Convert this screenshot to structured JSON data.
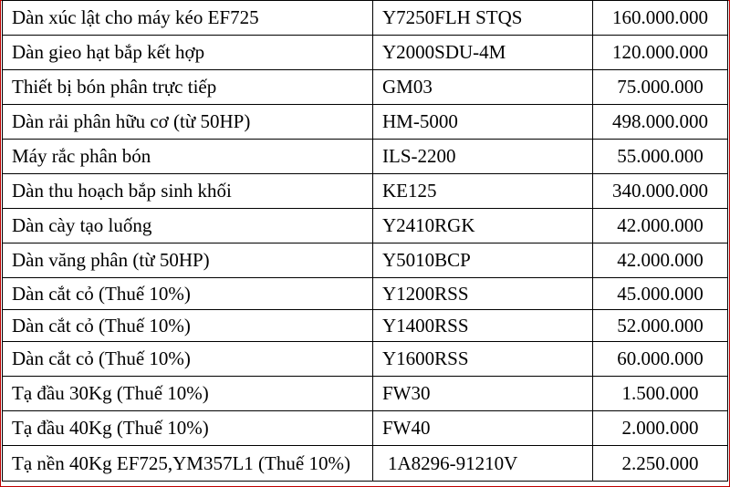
{
  "price_table": {
    "rows": [
      {
        "name": "Dàn xúc lật cho máy kéo EF725",
        "code": "Y7250FLH STQS",
        "price": "160.000.000"
      },
      {
        "name": "Dàn gieo hạt bắp kết hợp",
        "code": "Y2000SDU-4M",
        "price": "120.000.000"
      },
      {
        "name": "Thiết bị bón phân trực tiếp",
        "code": "GM03",
        "price": "75.000.000"
      },
      {
        "name": "Dàn rải phân hữu cơ (từ 50HP)",
        "code": "HM-5000",
        "price": "498.000.000"
      },
      {
        "name": "Máy rắc phân bón",
        "code": "ILS-2200",
        "price": "55.000.000"
      },
      {
        "name": "Dàn thu hoạch bắp sinh khối",
        "code": "KE125",
        "price": "340.000.000"
      },
      {
        "name": "Dàn cày tạo luống",
        "code": "Y2410RGK",
        "price": "42.000.000"
      },
      {
        "name": "Dàn văng phân (từ 50HP)",
        "code": "Y5010BCP",
        "price": "42.000.000"
      },
      {
        "name": "Dàn cắt cỏ (Thuế 10%)",
        "code": "Y1200RSS",
        "price": "45.000.000"
      },
      {
        "name": "Dàn cắt cỏ (Thuế 10%)",
        "code": "Y1400RSS",
        "price": "52.000.000"
      },
      {
        "name": "Dàn cắt cỏ (Thuế 10%)",
        "code": "Y1600RSS",
        "price": "60.000.000"
      },
      {
        "name": "Tạ đầu 30Kg (Thuế 10%)",
        "code": "FW30",
        "price": "1.500.000"
      },
      {
        "name": "Tạ đầu 40Kg (Thuế 10%)",
        "code": "FW40",
        "price": "2.000.000"
      },
      {
        "name": "Tạ nền 40Kg EF725,YM357L1 (Thuế 10%)",
        "code": "1A8296-91210V",
        "price": "2.250.000"
      }
    ]
  },
  "colors": {
    "frame_border": "#c00000",
    "grid_line": "#000000",
    "text": "#000000"
  }
}
